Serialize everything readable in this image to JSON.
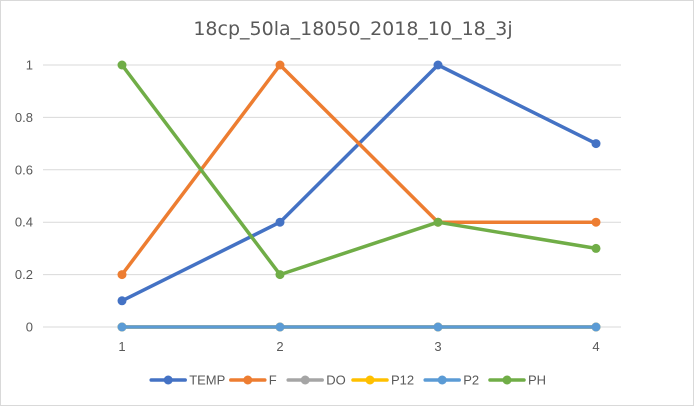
{
  "chart_data": {
    "type": "line",
    "title": "18cp_50la_18050_2018_10_18_3j",
    "xlabel": "",
    "ylabel": "",
    "categories": [
      "1",
      "2",
      "3",
      "4"
    ],
    "ylim": [
      0,
      1
    ],
    "yticks": [
      "0",
      "0.2",
      "0.4",
      "0.6",
      "0.8",
      "1"
    ],
    "grid": "horizontal",
    "legend_position": "bottom",
    "series": [
      {
        "name": "TEMP",
        "color": "#4472c4",
        "values": [
          0.1,
          0.4,
          1.0,
          0.7
        ]
      },
      {
        "name": "F",
        "color": "#ed7d31",
        "values": [
          0.2,
          1.0,
          0.4,
          0.4
        ]
      },
      {
        "name": "DO",
        "color": "#a5a5a5",
        "values": [
          0,
          0,
          0,
          0
        ]
      },
      {
        "name": "P12",
        "color": "#ffc000",
        "values": [
          0,
          0,
          0,
          0
        ]
      },
      {
        "name": "P2",
        "color": "#5b9bd5",
        "values": [
          0,
          0,
          0,
          0
        ]
      },
      {
        "name": "PH",
        "color": "#70ad47",
        "values": [
          1.0,
          0.2,
          0.4,
          0.3
        ]
      }
    ]
  }
}
